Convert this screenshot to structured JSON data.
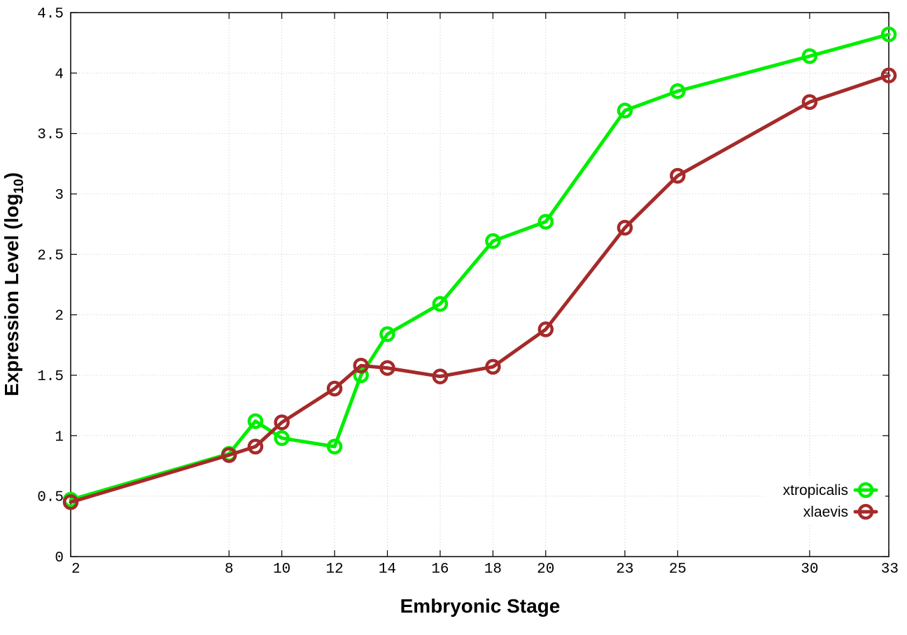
{
  "chart_data": {
    "type": "line",
    "xlabel": "Embryonic Stage",
    "ylabel": {
      "text": "Expression Level (log",
      "subscript": "10",
      "suffix": ")"
    },
    "x_categories": [
      "2",
      "8",
      "10",
      "12",
      "14",
      "16",
      "18",
      "20",
      "23",
      "25",
      "30",
      "33"
    ],
    "y_ticks": [
      "0",
      "0.5",
      "1",
      "1.5",
      "2",
      "2.5",
      "3",
      "3.5",
      "4",
      "4.5"
    ],
    "ylim": [
      0,
      4.5
    ],
    "grid": true,
    "legend_position": "bottom-right",
    "series": [
      {
        "name": "xtropicalis",
        "color": "#00ee00",
        "x": [
          2,
          8,
          9,
          10,
          12,
          13,
          14,
          16,
          18,
          20,
          23,
          25,
          30,
          33
        ],
        "values": [
          0.47,
          0.85,
          1.12,
          0.98,
          0.91,
          1.5,
          1.84,
          2.09,
          2.61,
          2.77,
          3.69,
          3.85,
          4.14,
          4.32
        ]
      },
      {
        "name": "xlaevis",
        "color": "#a52a2a",
        "x": [
          2,
          8,
          9,
          10,
          12,
          13,
          14,
          16,
          18,
          20,
          23,
          25,
          30,
          33
        ],
        "values": [
          0.45,
          0.84,
          0.91,
          1.11,
          1.39,
          1.58,
          1.56,
          1.49,
          1.57,
          1.88,
          2.72,
          3.15,
          3.76,
          3.98
        ]
      }
    ]
  }
}
